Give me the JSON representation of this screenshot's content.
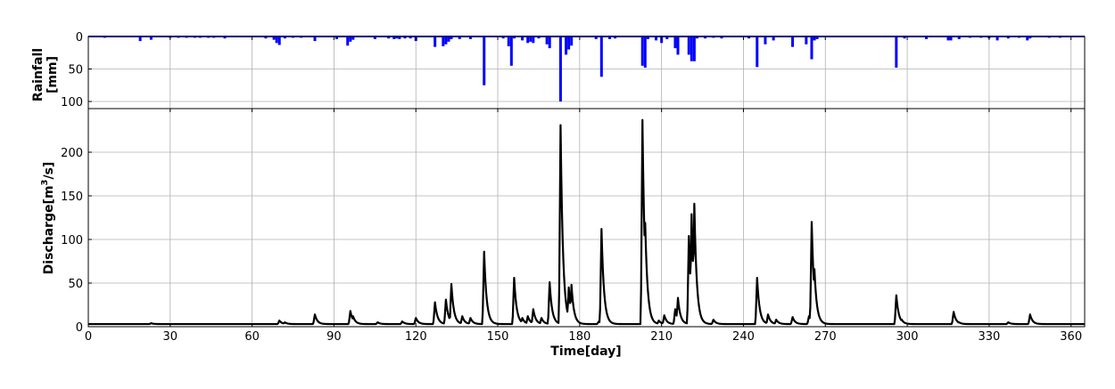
{
  "chart_data": [
    {
      "id": "rainfall",
      "type": "bar",
      "ylabel_lines": [
        "Rainfall",
        "[mm]"
      ],
      "xlim": [
        0,
        365
      ],
      "ylim": [
        0,
        100
      ],
      "y_inverted": true,
      "yticks": [
        0,
        50,
        100
      ],
      "xticks": [
        0,
        30,
        60,
        90,
        120,
        150,
        180,
        210,
        240,
        270,
        300,
        330,
        360
      ],
      "grid": true,
      "color": "#0000ff",
      "series": [
        {
          "x": [
            6,
            19,
            23,
            30,
            33,
            36,
            39,
            41,
            44,
            46,
            50,
            65,
            68,
            69,
            70,
            72,
            75,
            78,
            83,
            91,
            95,
            96,
            97,
            105,
            110,
            112,
            113,
            114,
            116,
            118,
            120,
            127,
            130,
            131,
            132,
            133,
            136,
            140,
            145,
            152,
            154,
            155,
            156,
            159,
            161,
            162,
            163,
            165,
            168,
            169,
            173,
            175,
            176,
            177,
            186,
            188,
            191,
            193,
            203,
            204,
            205,
            208,
            210,
            212,
            215,
            216,
            220,
            221,
            222,
            223,
            226,
            229,
            232,
            242,
            245,
            248,
            251,
            258,
            263,
            265,
            266,
            267,
            296,
            299,
            307,
            315,
            316,
            319,
            323,
            327,
            330,
            333,
            337,
            341,
            344,
            345,
            352,
            356
          ],
          "values": [
            2,
            7,
            5,
            2,
            2,
            2,
            2,
            2,
            2,
            2,
            3,
            3,
            5,
            10,
            13,
            3,
            2,
            2,
            7,
            4,
            14,
            8,
            5,
            4,
            3,
            4,
            3,
            4,
            3,
            3,
            7,
            16,
            15,
            12,
            8,
            4,
            4,
            4,
            75,
            3,
            15,
            45,
            3,
            6,
            10,
            8,
            10,
            3,
            12,
            18,
            100,
            28,
            20,
            14,
            4,
            62,
            4,
            3,
            45,
            48,
            4,
            6,
            10,
            4,
            18,
            28,
            28,
            38,
            38,
            3,
            3,
            2,
            3,
            3,
            47,
            12,
            6,
            16,
            12,
            35,
            6,
            4,
            48,
            3,
            4,
            6,
            6,
            4,
            2,
            2,
            3,
            6,
            3,
            2,
            6,
            3,
            2,
            2
          ]
        }
      ]
    },
    {
      "id": "discharge",
      "type": "line",
      "ylabel": "Discharge[m$^3$/s]",
      "ylabel_text": "Discharge[m",
      "ylabel_sup": "3",
      "ylabel_tail": "/s]",
      "xlabel": "Time[day]",
      "xlim": [
        0,
        365
      ],
      "ylim": [
        0,
        235
      ],
      "yticks": [
        0,
        50,
        100,
        150,
        200
      ],
      "xticks": [
        0,
        30,
        60,
        90,
        120,
        150,
        180,
        210,
        240,
        270,
        300,
        330,
        360
      ],
      "grid": true,
      "color": "#000000",
      "baseflow": 3,
      "peaks": [
        {
          "x": 23,
          "y": 4
        },
        {
          "x": 70,
          "y": 7
        },
        {
          "x": 72,
          "y": 5
        },
        {
          "x": 83,
          "y": 14
        },
        {
          "x": 96,
          "y": 18
        },
        {
          "x": 97,
          "y": 12
        },
        {
          "x": 106,
          "y": 5
        },
        {
          "x": 115,
          "y": 6
        },
        {
          "x": 120,
          "y": 10
        },
        {
          "x": 127,
          "y": 28
        },
        {
          "x": 131,
          "y": 31
        },
        {
          "x": 133,
          "y": 49
        },
        {
          "x": 137,
          "y": 12
        },
        {
          "x": 140,
          "y": 10
        },
        {
          "x": 145,
          "y": 86
        },
        {
          "x": 156,
          "y": 56
        },
        {
          "x": 159,
          "y": 10
        },
        {
          "x": 161,
          "y": 12
        },
        {
          "x": 163,
          "y": 20
        },
        {
          "x": 166,
          "y": 10
        },
        {
          "x": 169,
          "y": 51
        },
        {
          "x": 173,
          "y": 231
        },
        {
          "x": 176,
          "y": 45
        },
        {
          "x": 177,
          "y": 48
        },
        {
          "x": 187,
          "y": 6
        },
        {
          "x": 188,
          "y": 112
        },
        {
          "x": 191,
          "y": 6
        },
        {
          "x": 203,
          "y": 237
        },
        {
          "x": 204,
          "y": 119
        },
        {
          "x": 209,
          "y": 7
        },
        {
          "x": 211,
          "y": 13
        },
        {
          "x": 215,
          "y": 20
        },
        {
          "x": 216,
          "y": 33
        },
        {
          "x": 220,
          "y": 104
        },
        {
          "x": 221,
          "y": 129
        },
        {
          "x": 222,
          "y": 141
        },
        {
          "x": 225,
          "y": 8
        },
        {
          "x": 229,
          "y": 8
        },
        {
          "x": 245,
          "y": 56
        },
        {
          "x": 249,
          "y": 14
        },
        {
          "x": 252,
          "y": 8
        },
        {
          "x": 258,
          "y": 11
        },
        {
          "x": 264,
          "y": 12
        },
        {
          "x": 265,
          "y": 120
        },
        {
          "x": 266,
          "y": 66
        },
        {
          "x": 268,
          "y": 10
        },
        {
          "x": 296,
          "y": 36
        },
        {
          "x": 298,
          "y": 8
        },
        {
          "x": 317,
          "y": 17
        },
        {
          "x": 319,
          "y": 5
        },
        {
          "x": 337,
          "y": 5
        },
        {
          "x": 345,
          "y": 14
        }
      ]
    }
  ]
}
